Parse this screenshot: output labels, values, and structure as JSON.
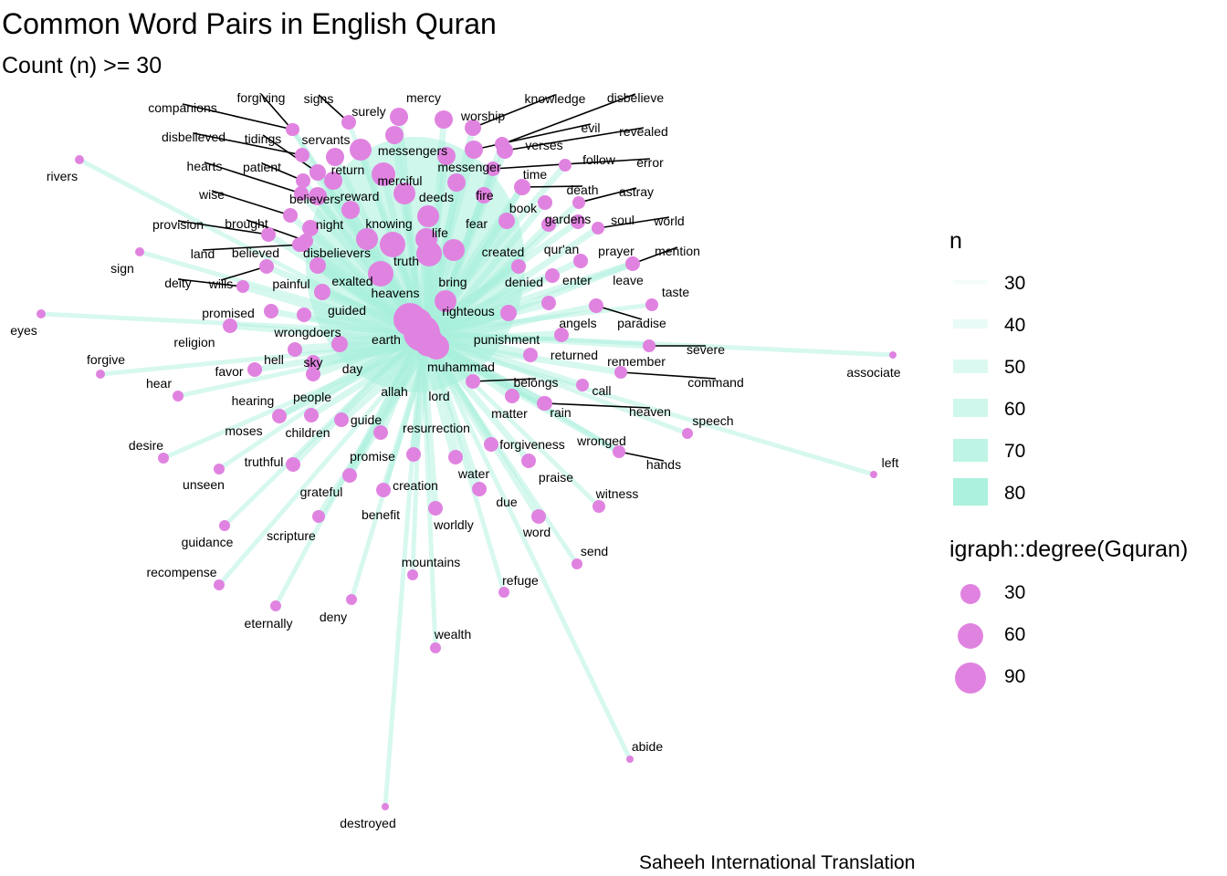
{
  "title": "Common Word Pairs in English Quran",
  "subtitle": "Count (n) >= 30",
  "caption": "Saheeh International Translation",
  "colors": {
    "edge": "#a8f0dc",
    "node": "#e083e0",
    "leader": "#000000"
  },
  "legend": {
    "edge_title": "n",
    "edge_entries": [
      "30",
      "40",
      "50",
      "60",
      "70",
      "80"
    ],
    "size_title": "igraph::degree(Gquran)",
    "size_entries": [
      "30",
      "60",
      "90"
    ]
  },
  "graph": {
    "hub_words": [
      "allah",
      "lord"
    ],
    "words": [
      "mercy",
      "worship",
      "knowledge",
      "disbelieve",
      "forgiving",
      "signs",
      "surely",
      "companions",
      "evil",
      "revealed",
      "disbelieved",
      "tidings",
      "servants",
      "messengers",
      "verses",
      "messenger",
      "follow",
      "error",
      "hearts",
      "patient",
      "return",
      "time",
      "merciful",
      "wise",
      "believers",
      "reward",
      "deeds",
      "fire",
      "death",
      "astray",
      "book",
      "gardens",
      "soul",
      "world",
      "provision",
      "brought",
      "night",
      "knowing",
      "fear",
      "life",
      "land",
      "believed",
      "disbelievers",
      "qur'an",
      "prayer",
      "mention",
      "created",
      "truth",
      "sign",
      "deity",
      "wills",
      "bring",
      "denied",
      "enter",
      "leave",
      "painful",
      "exalted",
      "heavens",
      "taste",
      "promised",
      "guided",
      "righteous",
      "angels",
      "paradise",
      "eyes",
      "wrongdoers",
      "punishment",
      "religion",
      "earth",
      "returned",
      "severe",
      "forgive",
      "hell",
      "sky",
      "remember",
      "favor",
      "day",
      "muhammad",
      "associate",
      "hear",
      "belongs",
      "command",
      "call",
      "hearing",
      "people",
      "allah",
      "lord",
      "heaven",
      "matter",
      "rain",
      "moses",
      "guide",
      "speech",
      "children",
      "resurrection",
      "desire",
      "forgiveness",
      "wronged",
      "truthful",
      "promise",
      "hands",
      "left",
      "unseen",
      "creation",
      "water",
      "praise",
      "grateful",
      "due",
      "witness",
      "benefit",
      "worldly",
      "word",
      "guidance",
      "scripture",
      "send",
      "recompense",
      "mountains",
      "refuge",
      "eternally",
      "deny",
      "wealth",
      "abide",
      "destroyed",
      "rivers"
    ]
  }
}
